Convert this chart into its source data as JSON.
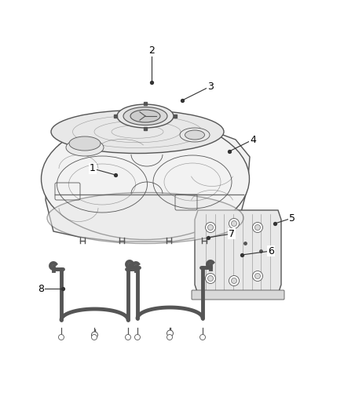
{
  "bg_color": "#ffffff",
  "line_color": "#555555",
  "line_color_dark": "#333333",
  "label_color": "#000000",
  "fill_light": "#f2f2f2",
  "fill_mid": "#e8e8e8",
  "fill_dark": "#d8d8d8",
  "lw_main": 1.0,
  "lw_thin": 0.6,
  "lw_thick": 1.5,
  "label_defs": [
    [
      "1",
      118,
      215,
      147,
      223,
      true
    ],
    [
      "2",
      193,
      65,
      193,
      105,
      true
    ],
    [
      "3",
      268,
      110,
      232,
      128,
      true
    ],
    [
      "4",
      322,
      178,
      292,
      193,
      true
    ],
    [
      "5",
      372,
      278,
      350,
      285,
      true
    ],
    [
      "6",
      345,
      320,
      308,
      325,
      true
    ],
    [
      "7",
      295,
      298,
      265,
      303,
      true
    ],
    [
      "8",
      52,
      368,
      80,
      368,
      true
    ]
  ]
}
